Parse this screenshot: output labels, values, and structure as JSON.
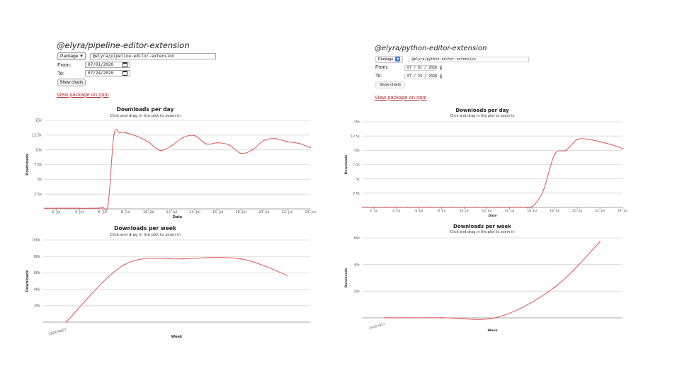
{
  "panels": {
    "left": {
      "package_title": "@elyra/pipeline-editor-extension",
      "package_select": "Package",
      "package_input": "@elyra/pipeline-editor-extension",
      "from_label": "From:",
      "from_value": "07/01/2020",
      "to_label": "To:",
      "to_value": "07/24/2020",
      "show_button": "Show charts",
      "npm_link": "View package on npm"
    },
    "right": {
      "package_title": "@elyra/python-editor-extension",
      "package_select": "Package",
      "package_input": "@elyra/python-editor-extension",
      "from_label": "From:",
      "from_value": "07 / 01 / 2020",
      "to_label": "To:",
      "to_value": "07 / 24 / 2020",
      "show_button": "Show charts",
      "npm_link": "View package on npm"
    }
  },
  "colors": {
    "series": "#e0565a",
    "grid": "#d6d6d6",
    "link": "#b02a2a"
  },
  "chart_data": [
    {
      "id": "left-daily",
      "type": "line",
      "title": "Downloads per day",
      "subtitle": "Click and drag in the plot to zoom in",
      "xlabel": "Date",
      "ylabel": "Downloads",
      "ylim": [
        0,
        15000
      ],
      "y_ticks": [
        2500,
        5000,
        7500,
        10000,
        12500,
        15000
      ],
      "y_tick_labels": [
        "2.5k",
        "5k",
        "7.5k",
        "10k",
        "12.5k",
        "15k"
      ],
      "x_ticks": [
        2,
        4,
        6,
        8,
        10,
        12,
        14,
        16,
        18,
        20,
        22,
        24
      ],
      "x_tick_labels": [
        "2. Jul",
        "4. Jul",
        "6. Jul",
        "8. Jul",
        "10. Jul",
        "12. Jul",
        "14. Jul",
        "16. Jul",
        "18. Jul",
        "20. Jul",
        "22. Jul",
        "24. Jul"
      ],
      "xlim": [
        1,
        24
      ],
      "x": [
        1,
        2,
        3,
        4,
        5,
        6,
        6.5,
        7,
        7.5,
        8,
        9,
        10,
        11,
        12,
        13,
        14,
        15,
        16,
        17,
        18,
        19,
        20,
        21,
        22,
        23,
        24
      ],
      "values": [
        100,
        100,
        100,
        100,
        100,
        200,
        800,
        12500,
        12900,
        12900,
        12300,
        11300,
        9900,
        10700,
        12100,
        12400,
        11000,
        11200,
        10800,
        9400,
        10000,
        11600,
        11900,
        11400,
        11100,
        10400
      ],
      "grid": true
    },
    {
      "id": "left-weekly",
      "type": "line",
      "title": "Downloads per week",
      "subtitle": "Click and drag in the plot to zoom in",
      "xlabel": "Week",
      "ylabel": "Downloads",
      "ylim": [
        0,
        100000
      ],
      "y_ticks": [
        20000,
        40000,
        60000,
        80000,
        100000
      ],
      "y_tick_labels": [
        "20k",
        "40k",
        "60k",
        "80k",
        "100k"
      ],
      "x_tick_labels": [
        "2020-W27"
      ],
      "x_ticks": [
        0
      ],
      "xlim": [
        -0.4,
        4.2
      ],
      "x": [
        0,
        1,
        2,
        3,
        3.8
      ],
      "values": [
        300,
        70000,
        77000,
        77000,
        57000
      ],
      "grid": true
    },
    {
      "id": "right-daily",
      "type": "line",
      "title": "Downloads per day",
      "subtitle": "Click and drag in the plot to zoom in",
      "xlabel": "Date",
      "ylabel": "Downloads",
      "ylim": [
        0,
        15000
      ],
      "y_ticks": [
        2500,
        5000,
        7500,
        10000,
        12500,
        15000
      ],
      "y_tick_labels": [
        "2.5k",
        "5k",
        "7.5k",
        "10k",
        "12.5k",
        "15k"
      ],
      "x_ticks": [
        2,
        4,
        6,
        8,
        10,
        12,
        14,
        16,
        18,
        20,
        22,
        24
      ],
      "x_tick_labels": [
        "2. Jul",
        "4. Jul",
        "6. Jul",
        "8. Jul",
        "10. Jul",
        "12. Jul",
        "14. Jul",
        "16. Jul",
        "18. Jul",
        "20. Jul",
        "22. Jul",
        "24. Jul"
      ],
      "xlim": [
        1,
        24
      ],
      "x": [
        1,
        2,
        3,
        4,
        5,
        6,
        7,
        8,
        9,
        10,
        11,
        12,
        13,
        14,
        15,
        16,
        17,
        18,
        19,
        20,
        21,
        22,
        23,
        24
      ],
      "values": [
        50,
        50,
        50,
        50,
        50,
        50,
        50,
        50,
        50,
        50,
        50,
        50,
        50,
        50,
        50,
        150,
        3000,
        9300,
        10000,
        11900,
        11900,
        11500,
        11000,
        10300
      ],
      "grid": true
    },
    {
      "id": "right-weekly",
      "type": "line",
      "title": "Downloads per week",
      "subtitle": "Click and drag in the plot to zoom in",
      "xlabel": "Week",
      "ylabel": "Downloads",
      "ylim": [
        0,
        60000
      ],
      "y_ticks": [
        20000,
        40000,
        60000
      ],
      "y_tick_labels": [
        "20k",
        "40k",
        "60k"
      ],
      "x_tick_labels": [
        "2020-W27"
      ],
      "x_ticks": [
        0
      ],
      "xlim": [
        -0.4,
        4.2
      ],
      "x": [
        0,
        1,
        2,
        3,
        3.8
      ],
      "values": [
        100,
        100,
        600,
        23000,
        57000
      ],
      "grid": true
    }
  ]
}
